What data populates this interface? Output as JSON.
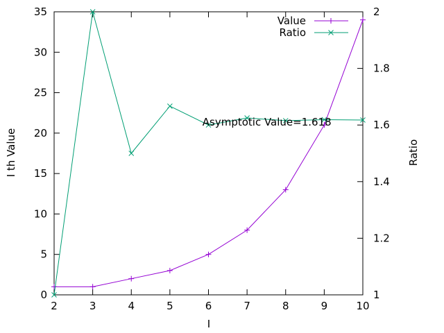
{
  "chart_data": {
    "type": "line",
    "x": [
      2,
      3,
      4,
      5,
      6,
      7,
      8,
      9,
      10
    ],
    "xlabel": "I",
    "ylabel": "I th Value",
    "y2label": "Ratio",
    "xlim": [
      2,
      10
    ],
    "ylim": [
      0,
      35
    ],
    "y2lim": [
      1,
      2
    ],
    "xticks": [
      "2",
      "3",
      "4",
      "5",
      "6",
      "7",
      "8",
      "9",
      "10"
    ],
    "yticks": [
      "0",
      "5",
      "10",
      "15",
      "20",
      "25",
      "30",
      "35"
    ],
    "y2ticks": [
      "1",
      "1.2",
      "1.4",
      "1.6",
      "1.8",
      "2"
    ],
    "grid": false,
    "legend_position": "top-right",
    "series": [
      {
        "name": "Value",
        "axis": "left",
        "color": "#9400d3",
        "marker": "+",
        "values": [
          1,
          1,
          2,
          3,
          5,
          8,
          13,
          21,
          34
        ]
      },
      {
        "name": "Ratio",
        "axis": "right",
        "color": "#009e73",
        "marker": "x",
        "values": [
          1,
          2,
          1.5,
          1.6667,
          1.6,
          1.625,
          1.6154,
          1.619,
          1.6176
        ]
      }
    ],
    "annotations": [
      {
        "text": "Asymptotic Value=1.618",
        "x": 8,
        "y2": 1.61
      }
    ]
  }
}
